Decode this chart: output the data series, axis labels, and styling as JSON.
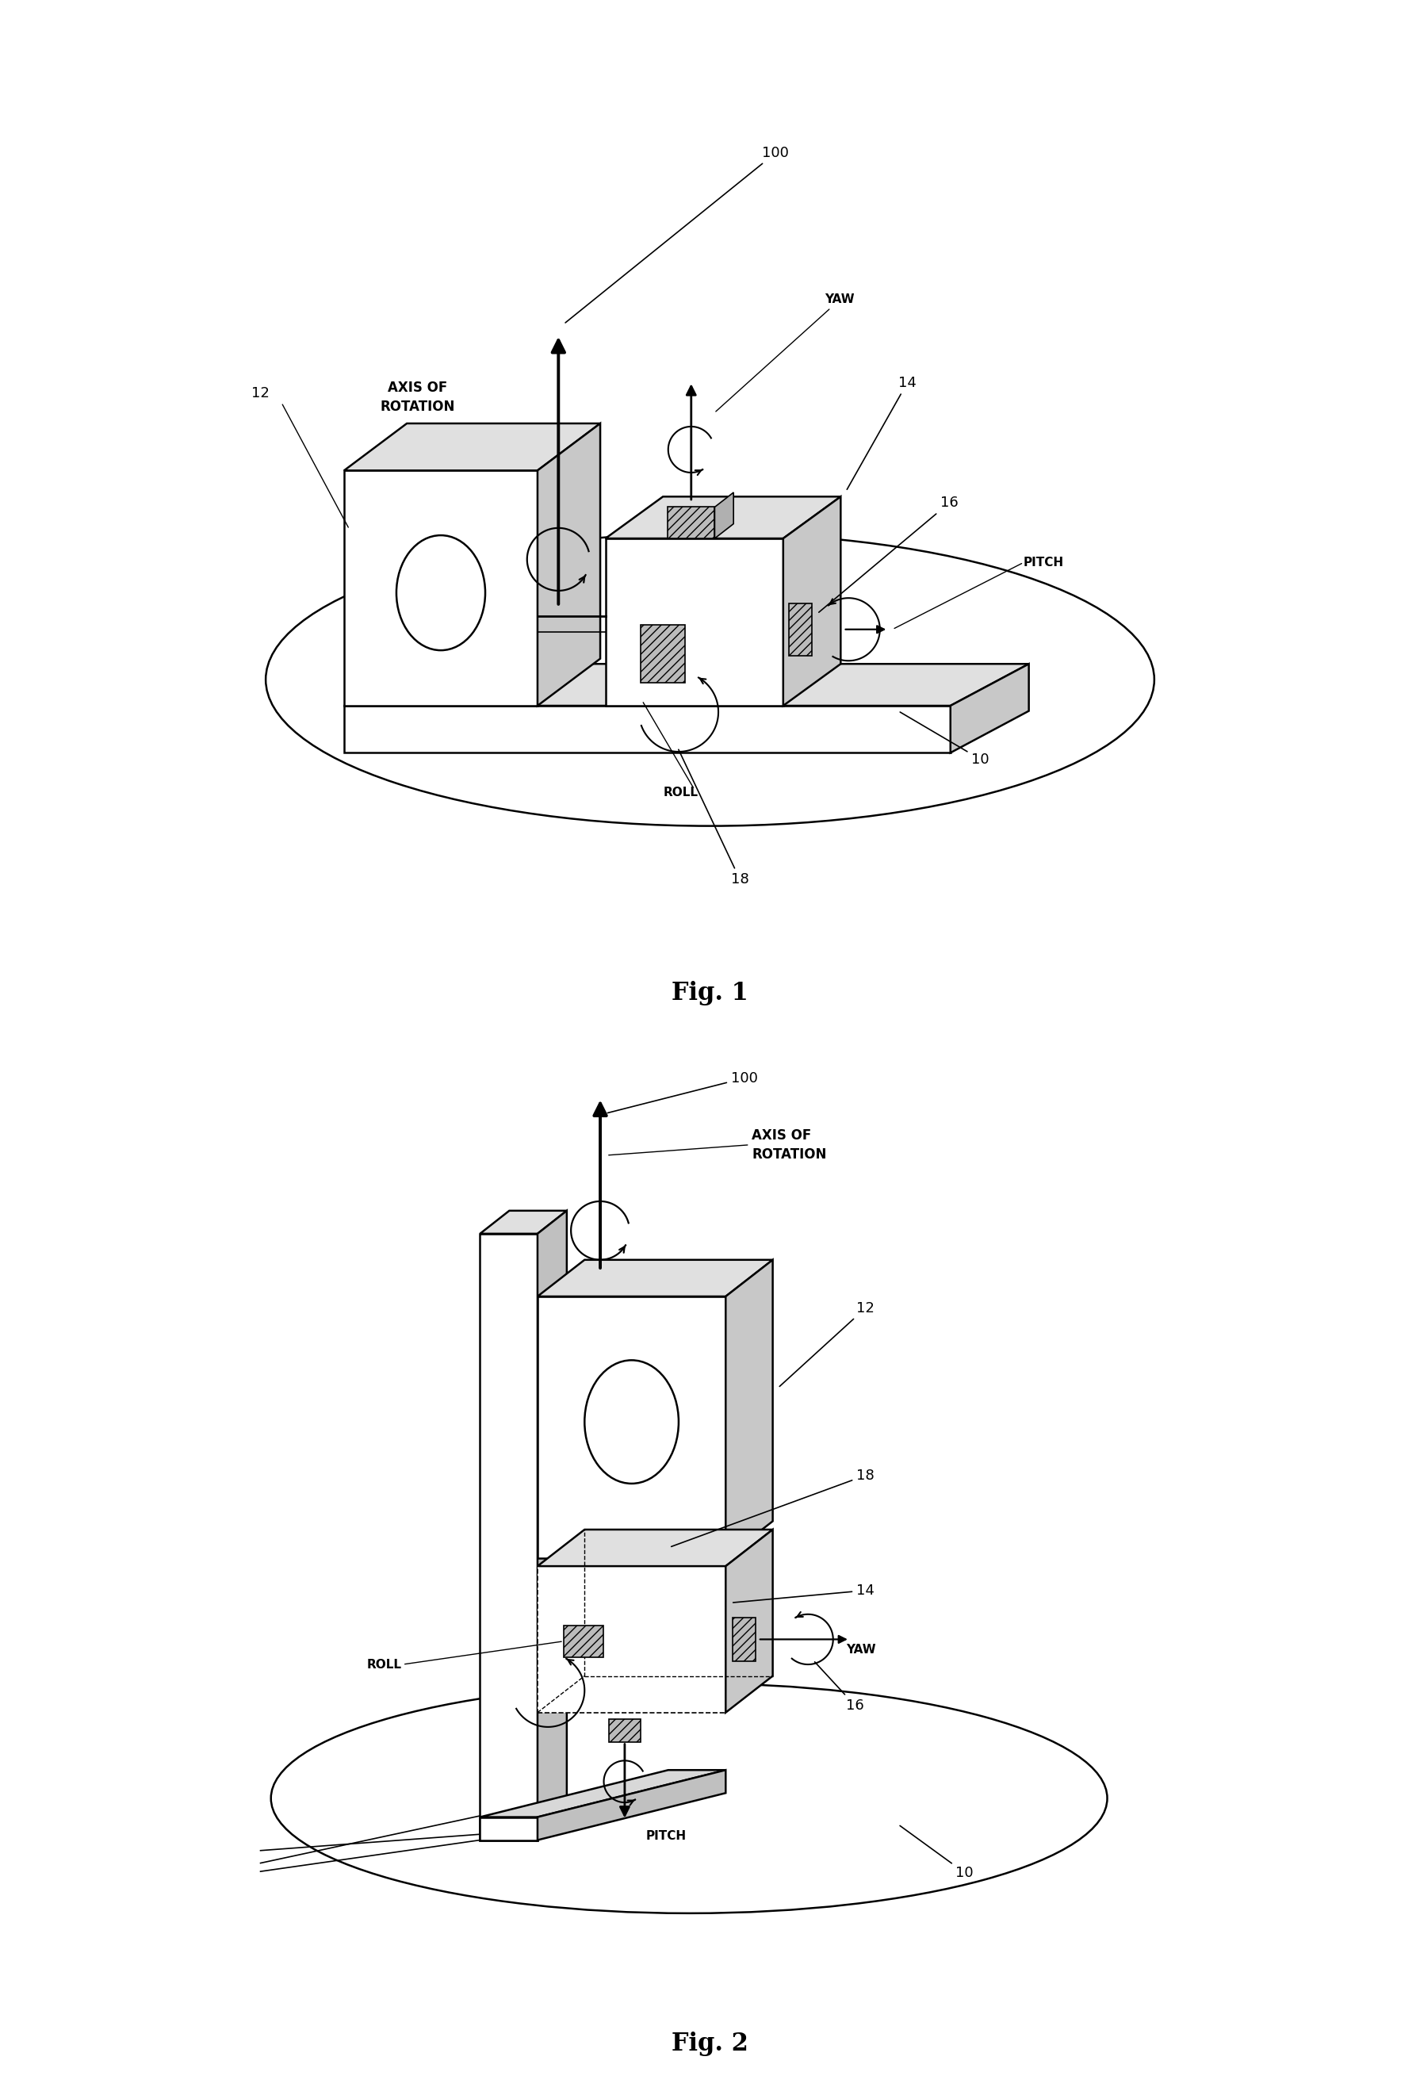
{
  "fig1_title": "Fig. 1",
  "fig2_title": "Fig. 2",
  "background_color": "#ffffff",
  "line_color": "#000000",
  "font_size_label": 11,
  "font_size_num": 12,
  "font_size_fig": 20,
  "labels": {
    "axis_of_rotation": "AXIS OF\nROTATION",
    "yaw": "YAW",
    "pitch": "PITCH",
    "roll": "ROLL"
  }
}
